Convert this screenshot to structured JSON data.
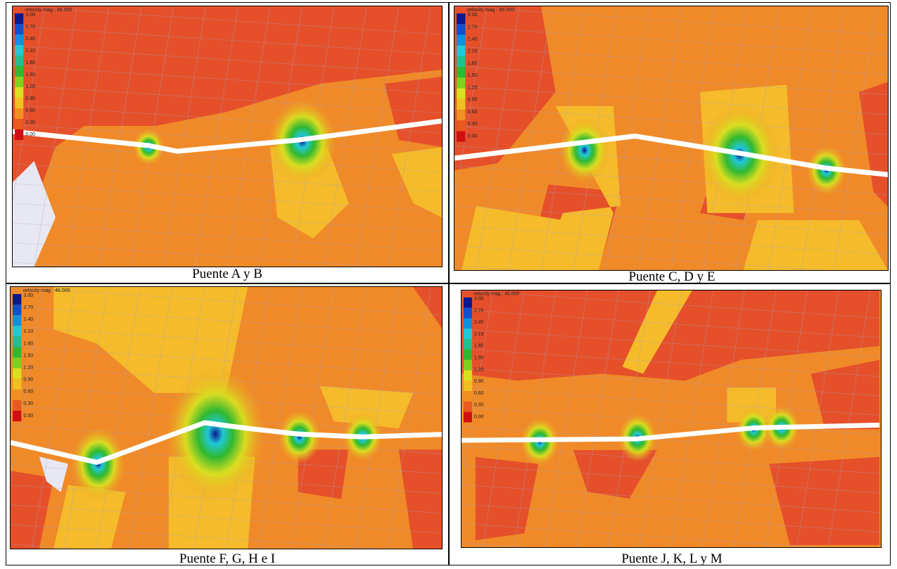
{
  "panels": [
    {
      "caption": "Puente A y B",
      "legend_title": "velocity mag : 46.000",
      "legend_labels": [
        "3.00",
        "2.70",
        "2.40",
        "2.10",
        "1.80",
        "1.50",
        "1.20",
        "0.90",
        "0.60",
        "0.30",
        "0.00"
      ]
    },
    {
      "caption": "Puente C, D y E",
      "legend_title": "velocity mag : 46.000",
      "legend_labels": [
        "3.00",
        "2.70",
        "2.40",
        "2.10",
        "1.80",
        "1.50",
        "1.20",
        "0.90",
        "0.60",
        "0.30",
        "0.00"
      ]
    },
    {
      "caption": "Puente F, G, H e I",
      "legend_title": "velocity mag : 46.000",
      "legend_labels": [
        "3.00",
        "2.70",
        "2.40",
        "2.10",
        "1.80",
        "1.50",
        "1.20",
        "0.90",
        "0.60",
        "0.30",
        "0.00"
      ]
    },
    {
      "caption": "Puente J, K, L y M",
      "legend_title": "velocity mag : 46.000",
      "legend_labels": [
        "3.00",
        "2.70",
        "2.40",
        "2.10",
        "1.80",
        "1.50",
        "1.20",
        "0.90",
        "0.60",
        "0.30",
        "0.00"
      ]
    }
  ]
}
